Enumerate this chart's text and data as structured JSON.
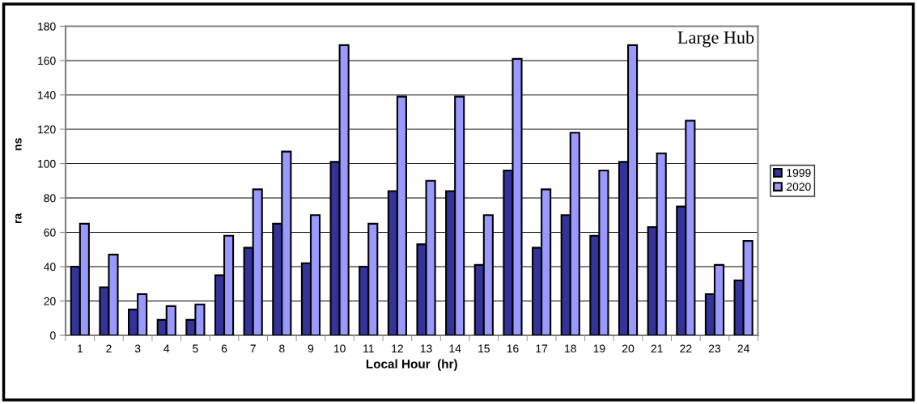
{
  "chart_data": {
    "type": "bar",
    "xlabel": "Local Hour  (hr)",
    "ylabel": "ra                    ns",
    "annotations": [
      "Large Hub"
    ],
    "categories": [
      "1",
      "2",
      "3",
      "4",
      "5",
      "6",
      "7",
      "8",
      "9",
      "10",
      "11",
      "12",
      "13",
      "14",
      "15",
      "16",
      "17",
      "18",
      "19",
      "20",
      "21",
      "22",
      "23",
      "24"
    ],
    "series": [
      {
        "name": "1999",
        "color": "#333399",
        "values": [
          40,
          28,
          15,
          9,
          9,
          35,
          51,
          65,
          42,
          101,
          40,
          84,
          53,
          84,
          41,
          96,
          51,
          70,
          58,
          101,
          63,
          75,
          24,
          32
        ]
      },
      {
        "name": "2020",
        "color": "#9999ff",
        "values": [
          65,
          47,
          24,
          17,
          18,
          58,
          85,
          107,
          70,
          169,
          65,
          139,
          90,
          139,
          70,
          161,
          85,
          118,
          96,
          169,
          106,
          125,
          41,
          55
        ]
      }
    ],
    "ylim": [
      0,
      180
    ],
    "yticks": [
      0,
      20,
      40,
      60,
      80,
      100,
      120,
      140,
      160,
      180
    ],
    "grid": "y",
    "legend": "right"
  }
}
